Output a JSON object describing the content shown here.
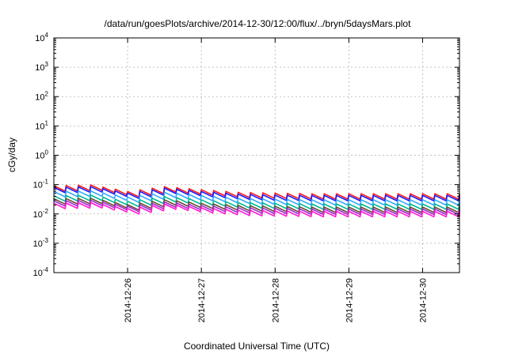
{
  "chart_data": {
    "type": "line",
    "title": "/data/run/goesPlots/archive/2014-12-30/12:00/flux/../bryn/5daysMars.plot",
    "xlabel": "Coordinated Universal Time (UTC)",
    "ylabel": "cGy/day",
    "yscale": "log",
    "ylim": [
      0.0001,
      10000
    ],
    "xlim": [
      "2014-12-25T00:00",
      "2014-12-30T12:00"
    ],
    "grid": true,
    "x_ticks": [
      {
        "date": "2014-12-26",
        "label": "2014-12-26"
      },
      {
        "date": "2014-12-27",
        "label": "2014-12-27"
      },
      {
        "date": "2014-12-28",
        "label": "2014-12-28"
      },
      {
        "date": "2014-12-29",
        "label": "2014-12-29"
      },
      {
        "date": "2014-12-30",
        "label": "2014-12-30"
      }
    ],
    "y_ticks": [
      {
        "value": 0.0001,
        "base": "10",
        "exp": "-4"
      },
      {
        "value": 0.001,
        "base": "10",
        "exp": "-3"
      },
      {
        "value": 0.01,
        "base": "10",
        "exp": "-2"
      },
      {
        "value": 0.1,
        "base": "10",
        "exp": "-1"
      },
      {
        "value": 1,
        "base": "10",
        "exp": "0"
      },
      {
        "value": 10,
        "base": "10",
        "exp": "1"
      },
      {
        "value": 100,
        "base": "10",
        "exp": "2"
      },
      {
        "value": 1000,
        "base": "10",
        "exp": "3"
      },
      {
        "value": 10000,
        "base": "10",
        "exp": "4"
      }
    ],
    "series": [
      {
        "color": "#ff1a1a",
        "x": [
          "2014-12-25T00:00",
          "2014-12-25T12:00",
          "2014-12-26T00:00",
          "2014-12-26T12:00",
          "2014-12-27T00:00",
          "2014-12-27T12:00",
          "2014-12-28T00:00",
          "2014-12-28T12:00",
          "2014-12-29T00:00",
          "2014-12-29T12:00",
          "2014-12-30T00:00",
          "2014-12-30T12:00"
        ],
        "y": [
          0.075,
          0.08,
          0.048,
          0.07,
          0.055,
          0.045,
          0.042,
          0.04,
          0.04,
          0.04,
          0.04,
          0.04
        ]
      },
      {
        "color": "#1a1aff",
        "x": [
          "2014-12-25T00:00",
          "2014-12-25T12:00",
          "2014-12-26T00:00",
          "2014-12-26T12:00",
          "2014-12-27T00:00",
          "2014-12-27T12:00",
          "2014-12-28T00:00",
          "2014-12-28T12:00",
          "2014-12-29T00:00",
          "2014-12-29T12:00",
          "2014-12-30T00:00",
          "2014-12-30T12:00"
        ],
        "y": [
          0.066,
          0.07,
          0.042,
          0.062,
          0.048,
          0.039,
          0.036,
          0.035,
          0.035,
          0.035,
          0.035,
          0.035
        ]
      },
      {
        "color": "#33a8ff",
        "x": [
          "2014-12-25T00:00",
          "2014-12-25T12:00",
          "2014-12-26T00:00",
          "2014-12-26T12:00",
          "2014-12-27T00:00",
          "2014-12-27T12:00",
          "2014-12-28T00:00",
          "2014-12-28T12:00",
          "2014-12-29T00:00",
          "2014-12-29T12:00",
          "2014-12-30T00:00",
          "2014-12-30T12:00"
        ],
        "y": [
          0.048,
          0.05,
          0.031,
          0.045,
          0.035,
          0.028,
          0.026,
          0.025,
          0.025,
          0.025,
          0.025,
          0.025
        ]
      },
      {
        "color": "#00b894",
        "x": [
          "2014-12-25T00:00",
          "2014-12-25T12:00",
          "2014-12-26T00:00",
          "2014-12-26T12:00",
          "2014-12-27T00:00",
          "2014-12-27T12:00",
          "2014-12-28T00:00",
          "2014-12-28T12:00",
          "2014-12-29T00:00",
          "2014-12-29T12:00",
          "2014-12-30T00:00",
          "2014-12-30T12:00"
        ],
        "y": [
          0.034,
          0.036,
          0.022,
          0.032,
          0.025,
          0.02,
          0.019,
          0.018,
          0.018,
          0.018,
          0.018,
          0.018
        ]
      },
      {
        "color": "#6a4c2e",
        "x": [
          "2014-12-25T00:00",
          "2014-12-25T12:00",
          "2014-12-26T00:00",
          "2014-12-26T12:00",
          "2014-12-27T00:00",
          "2014-12-27T12:00",
          "2014-12-28T00:00",
          "2014-12-28T12:00",
          "2014-12-29T00:00",
          "2014-12-29T12:00",
          "2014-12-30T00:00",
          "2014-12-30T12:00"
        ],
        "y": [
          0.027,
          0.028,
          0.017,
          0.025,
          0.019,
          0.016,
          0.015,
          0.014,
          0.014,
          0.014,
          0.014,
          0.014
        ]
      },
      {
        "color": "#9b2ccf",
        "x": [
          "2014-12-25T00:00",
          "2014-12-25T12:00",
          "2014-12-26T00:00",
          "2014-12-26T12:00",
          "2014-12-27T00:00",
          "2014-12-27T12:00",
          "2014-12-28T00:00",
          "2014-12-28T12:00",
          "2014-12-29T00:00",
          "2014-12-29T12:00",
          "2014-12-30T00:00",
          "2014-12-30T12:00"
        ],
        "y": [
          0.023,
          0.024,
          0.015,
          0.021,
          0.016,
          0.0135,
          0.0128,
          0.012,
          0.012,
          0.012,
          0.012,
          0.012
        ]
      },
      {
        "color": "#ff1ad1",
        "x": [
          "2014-12-25T00:00",
          "2014-12-25T12:00",
          "2014-12-26T00:00",
          "2014-12-26T12:00",
          "2014-12-27T00:00",
          "2014-12-27T12:00",
          "2014-12-28T00:00",
          "2014-12-28T12:00",
          "2014-12-29T00:00",
          "2014-12-29T12:00",
          "2014-12-30T00:00",
          "2014-12-30T12:00"
        ],
        "y": [
          0.019,
          0.02,
          0.0125,
          0.018,
          0.0135,
          0.011,
          0.0105,
          0.01,
          0.01,
          0.01,
          0.01,
          0.01
        ]
      }
    ]
  }
}
